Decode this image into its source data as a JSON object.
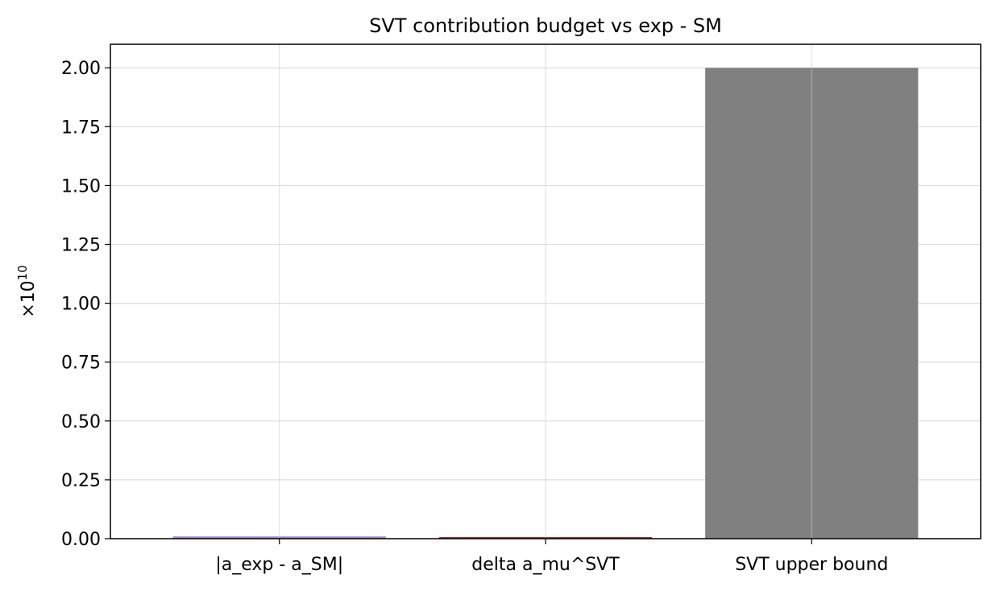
{
  "chart_data": {
    "type": "bar",
    "title": "SVT contribution budget vs exp - SM",
    "xlabel": "",
    "ylabel": "×10",
    "ylabel_exponent": "10",
    "categories": [
      "|a_exp - a_SM|",
      "delta a_mu^SVT",
      "SVT upper bound"
    ],
    "values": [
      0.0095,
      0.005,
      2.0
    ],
    "colors": [
      "#9b8fc4",
      "#a33a3a",
      "#808080"
    ],
    "ylim": [
      0,
      2.1
    ],
    "yticks": [
      0.0,
      0.25,
      0.5,
      0.75,
      1.0,
      1.25,
      1.5,
      1.75,
      2.0
    ],
    "ytick_labels": [
      "0.00",
      "0.25",
      "0.50",
      "0.75",
      "1.00",
      "1.25",
      "1.50",
      "1.75",
      "2.00"
    ],
    "grid": true
  }
}
